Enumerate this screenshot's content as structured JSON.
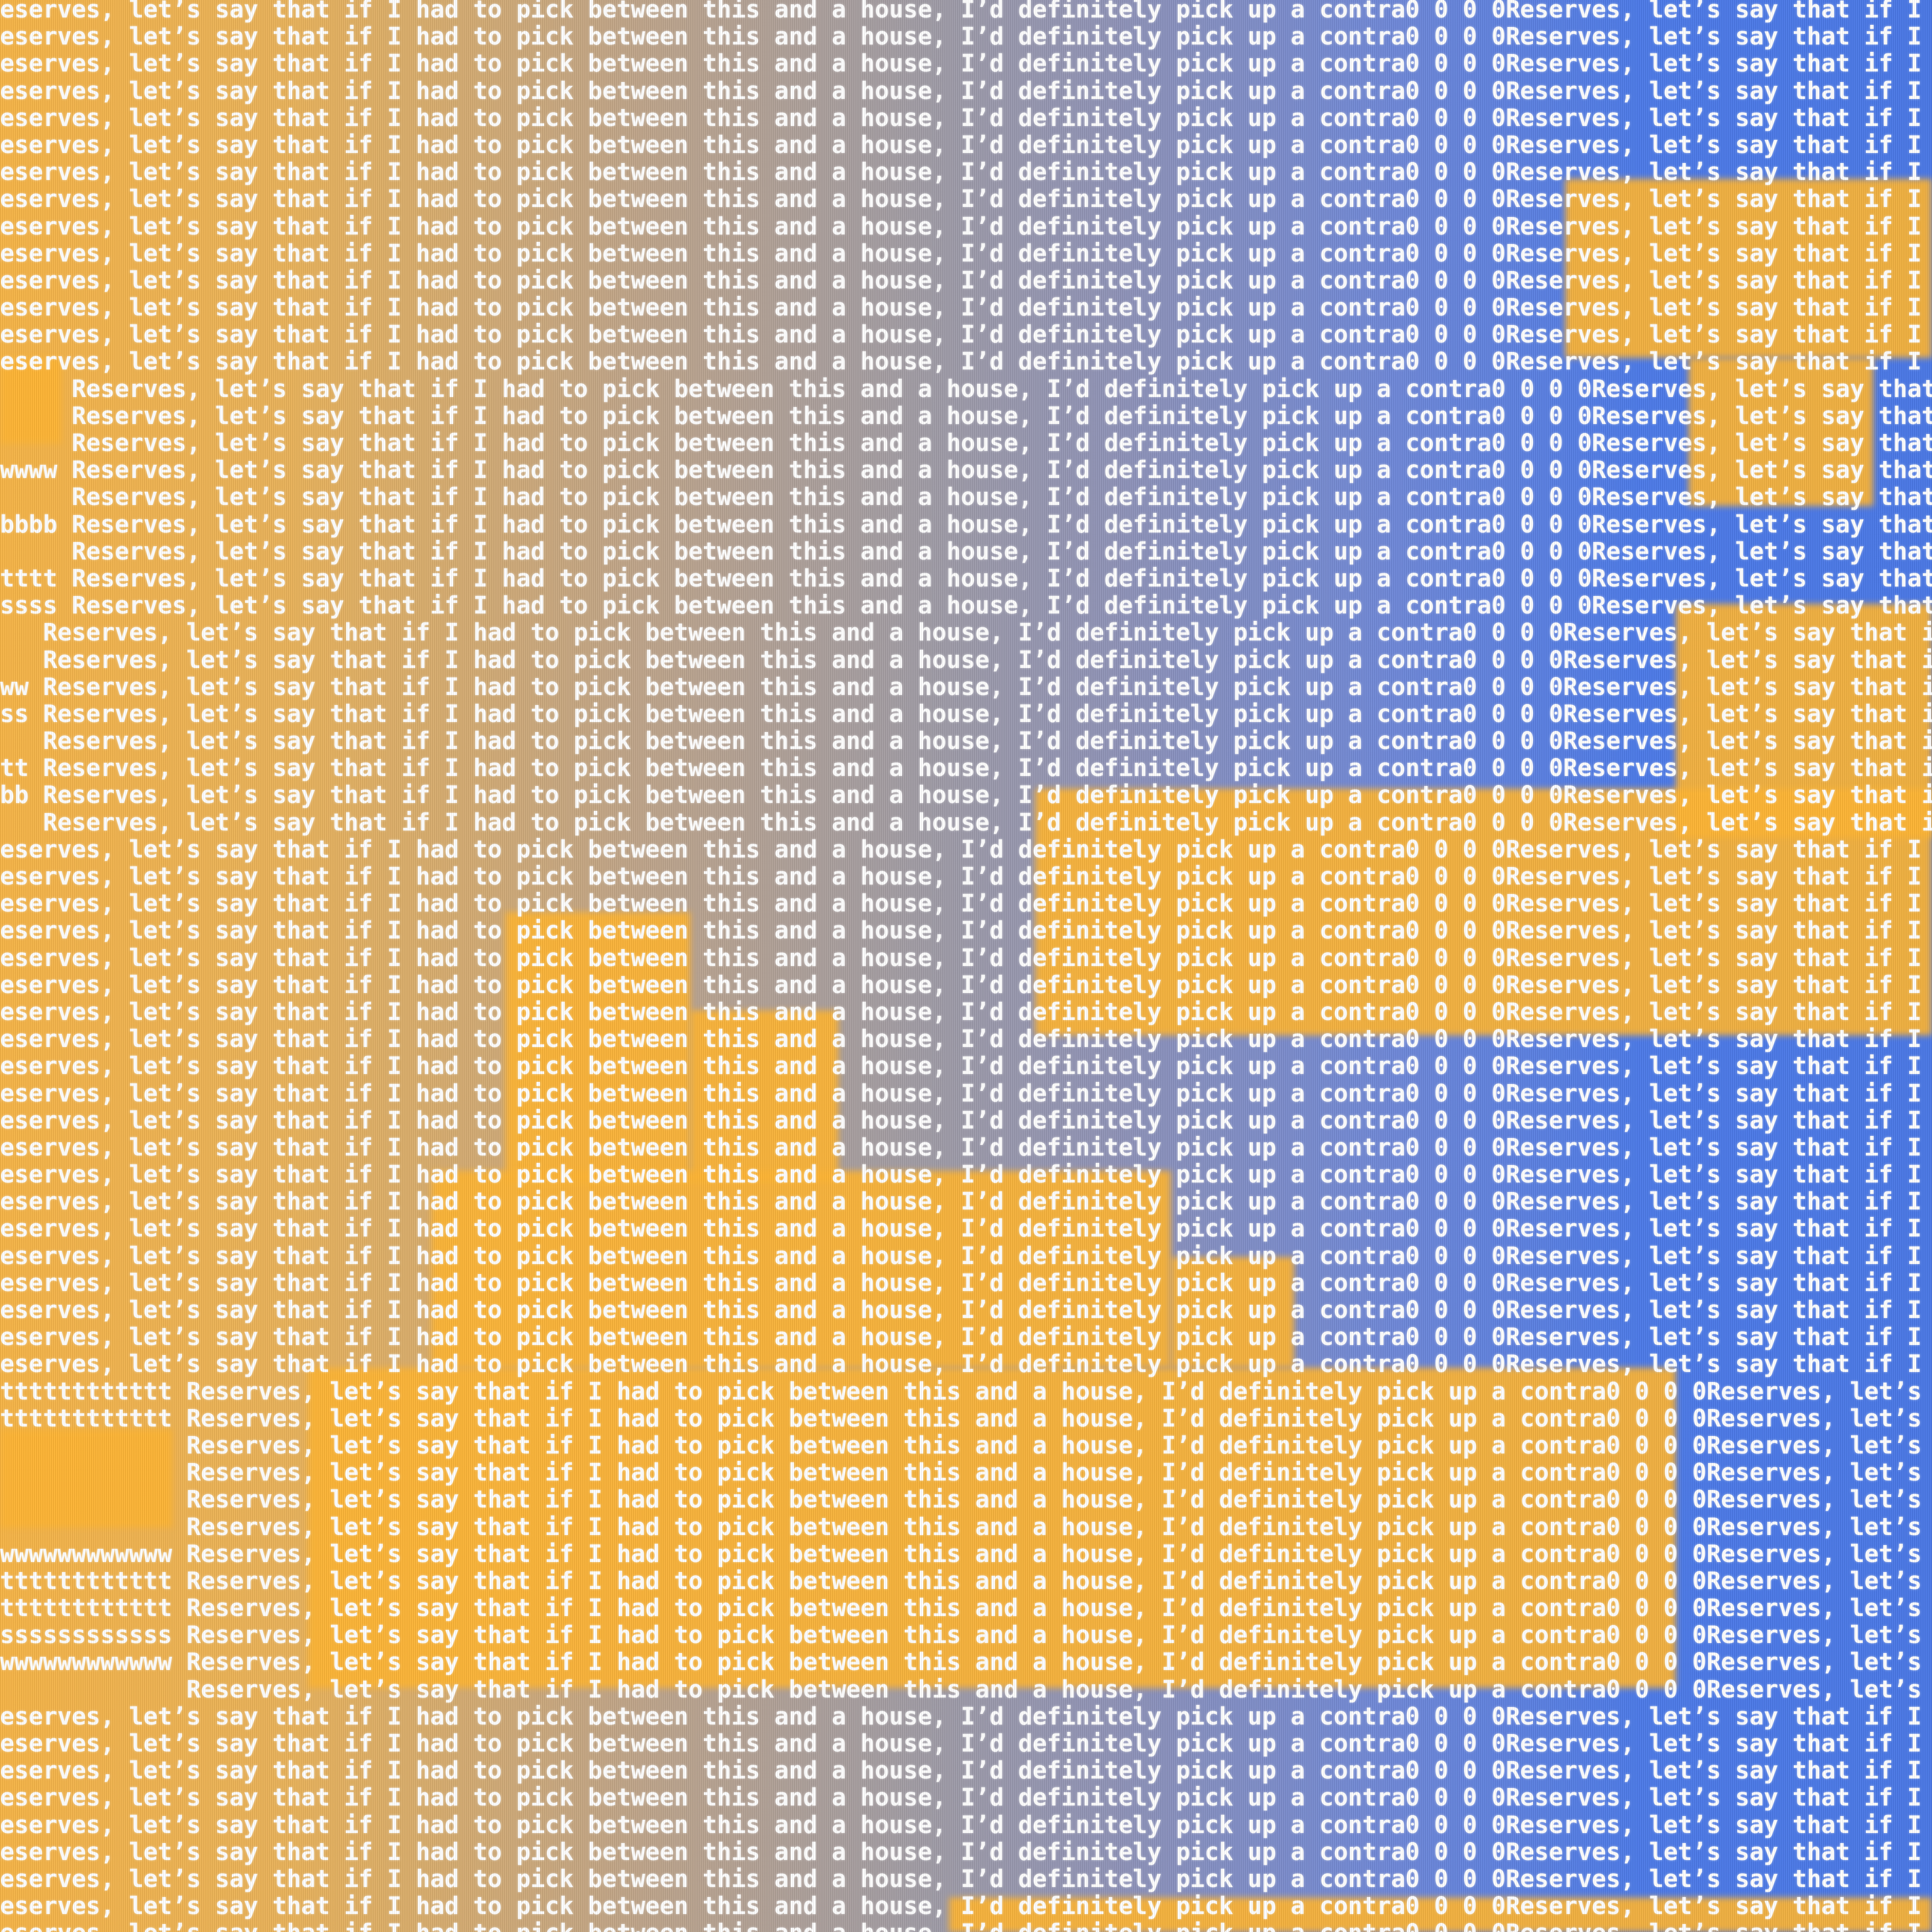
{
  "line": "Reserves, let’s say that if I had to pick between this and a house, I’d definitely pick up a contra0 0 0 0",
  "prefixes": [
    "wwww",
    "bbbb",
    "tttt",
    "ssss",
    "ww",
    "ss",
    "tt",
    "bb",
    "tttttttttttt",
    "tttttttttttt",
    "wwwwwwwwwwww",
    "tttttttttttt",
    "tttttttttttt",
    "ssssssssssss",
    "wwwwwwwwwwww"
  ]
}
